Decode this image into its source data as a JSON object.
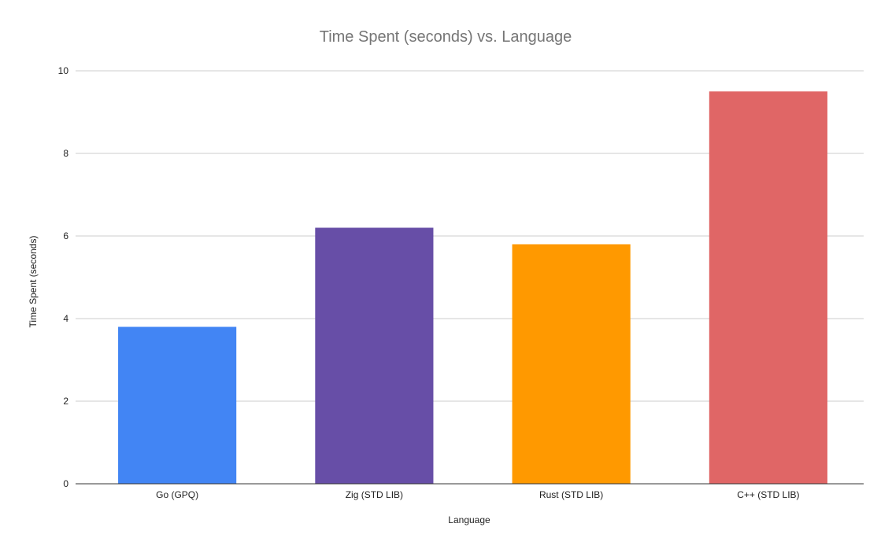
{
  "chart_data": {
    "type": "bar",
    "title": "Time Spent (seconds) vs. Language",
    "xlabel": "Language",
    "ylabel": "Time Spent (seconds)",
    "categories": [
      "Go (GPQ)",
      "Zig (STD LIB)",
      "Rust (STD LIB)",
      "C++ (STD LIB)"
    ],
    "values": [
      3.8,
      6.2,
      5.8,
      9.5
    ],
    "colors": [
      "#4285f4",
      "#674ea7",
      "#ff9900",
      "#e06666"
    ],
    "ylim": [
      0,
      10
    ],
    "yticks": [
      0,
      2,
      4,
      6,
      8,
      10
    ],
    "grid": true,
    "legend": "none"
  }
}
